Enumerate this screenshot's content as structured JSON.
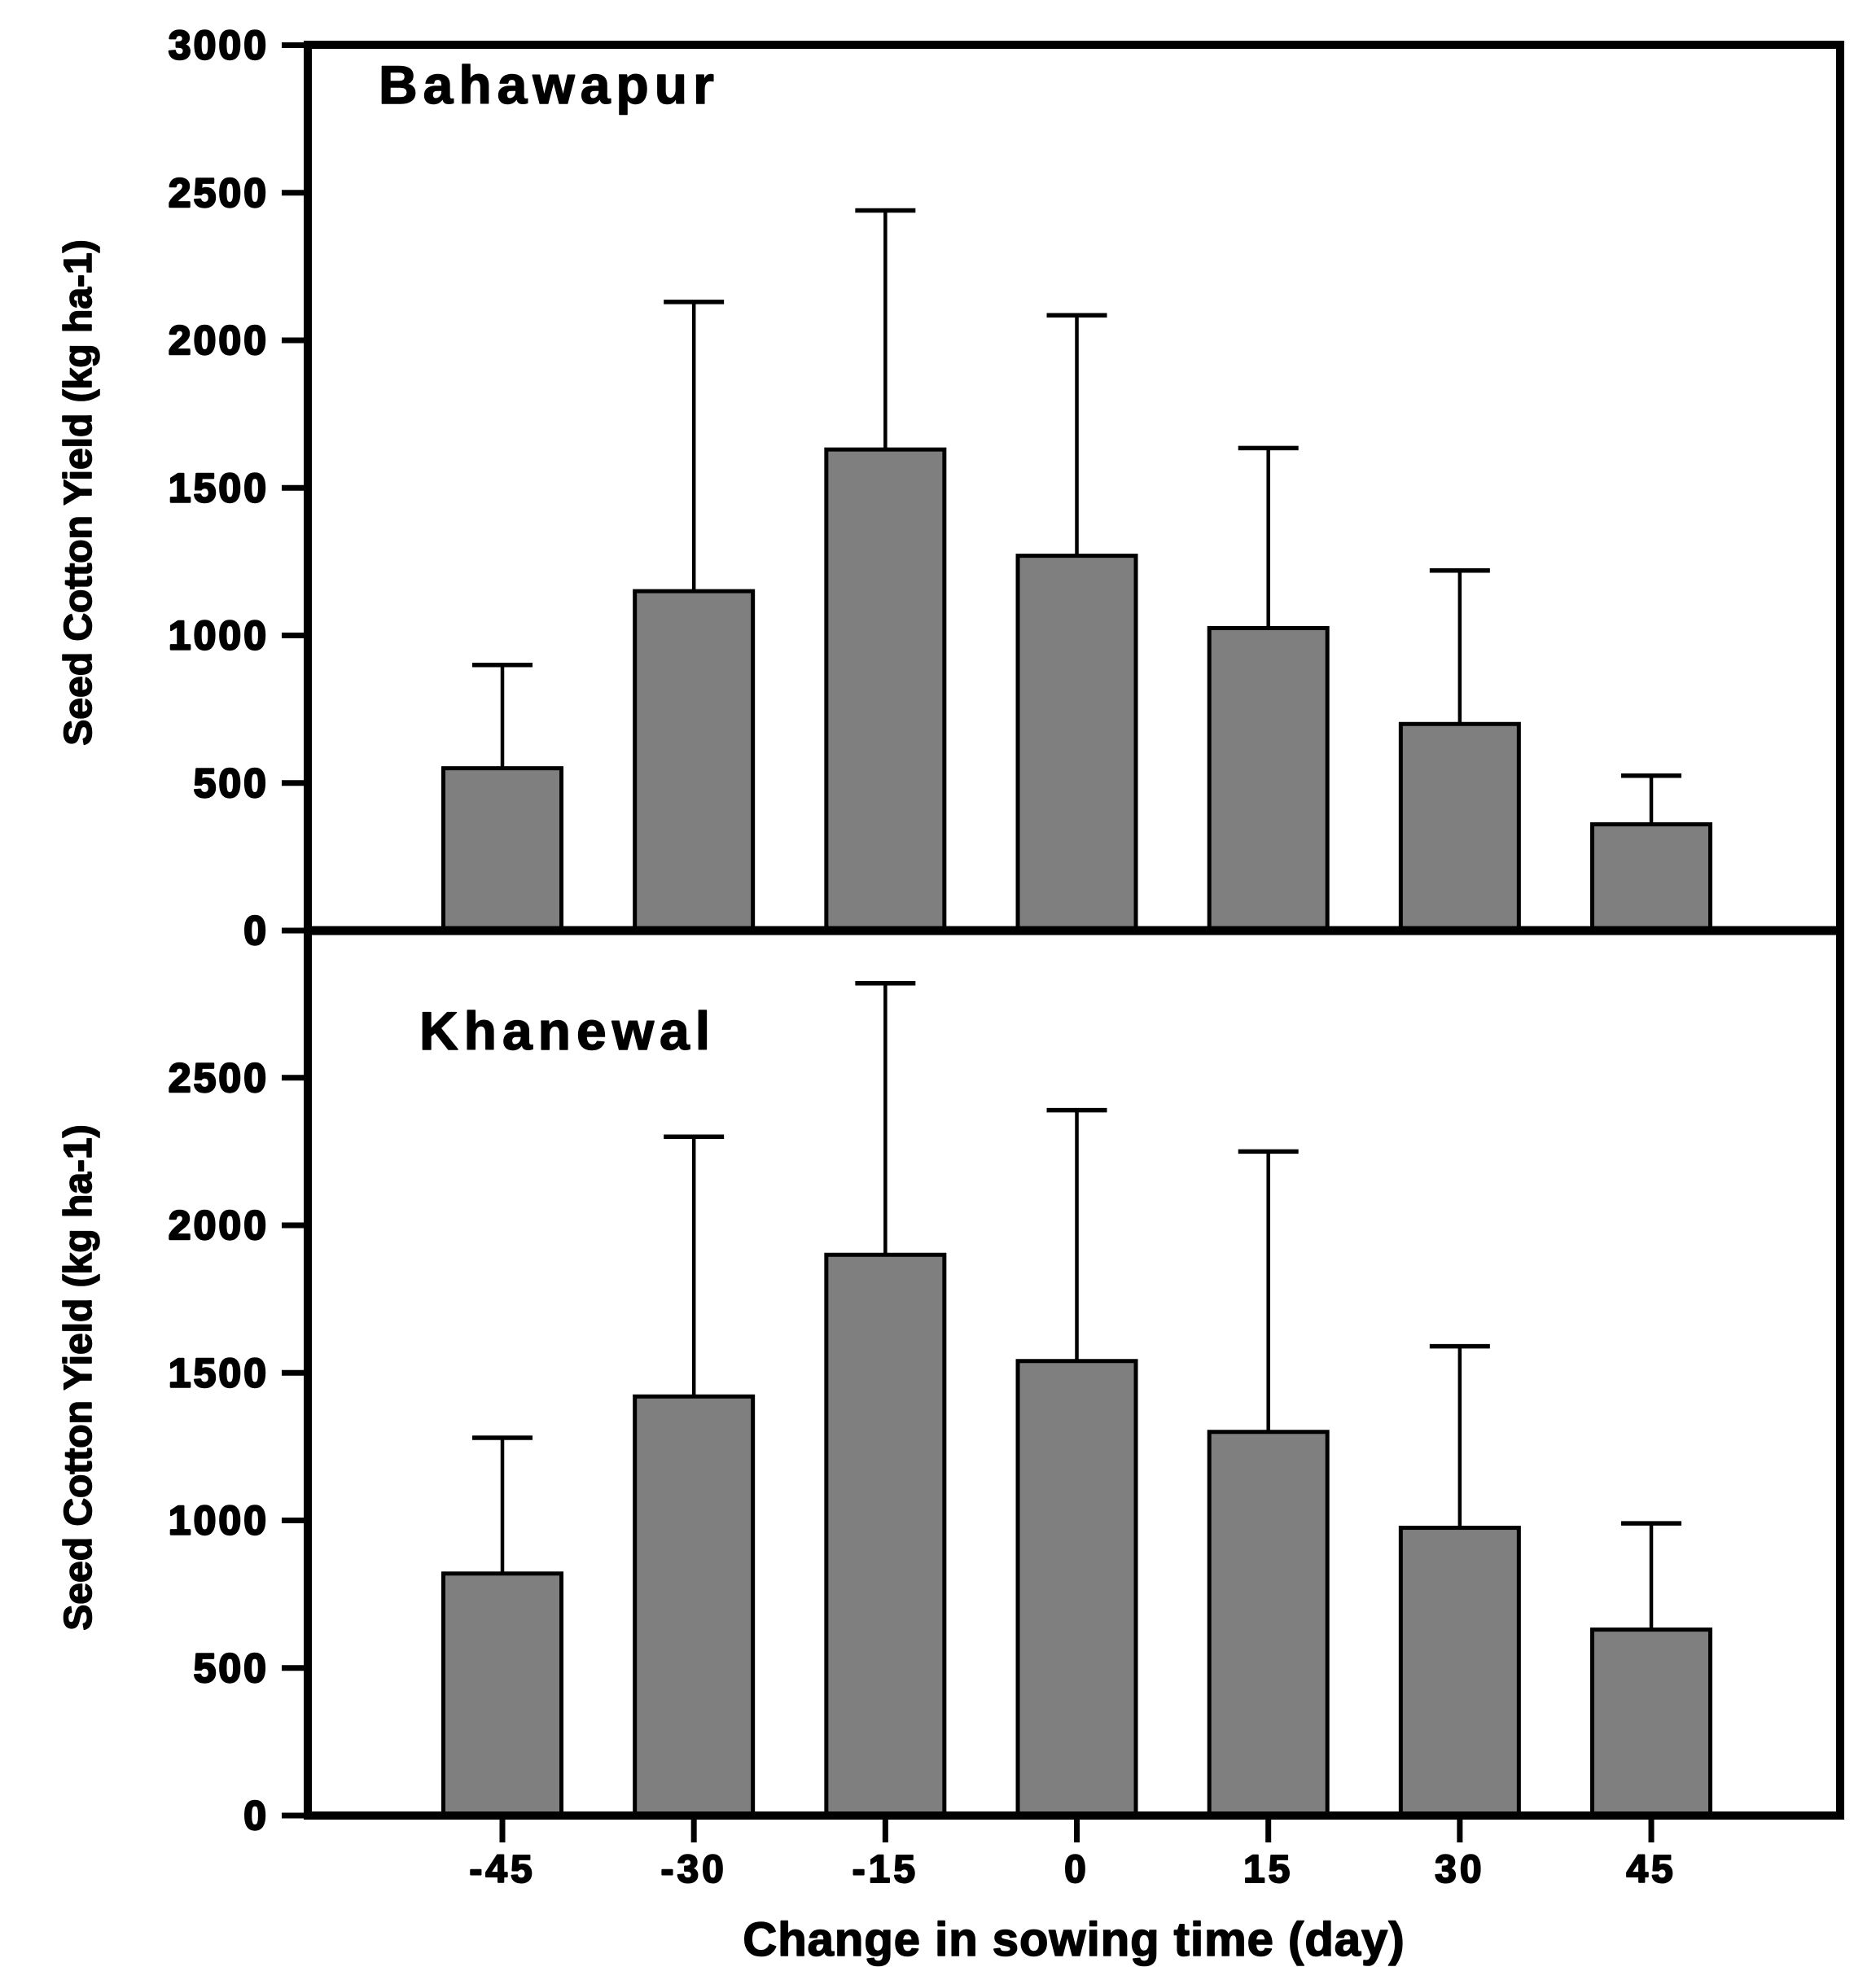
{
  "figure": {
    "background_color": "#ffffff",
    "bar_fill_color": "#7f7f7f",
    "bar_stroke_color": "#000000",
    "axis_color": "#000000"
  },
  "chart_data": {
    "type": "bar",
    "orientation": "vertical",
    "grid": false,
    "legend": "none",
    "categories": [
      "-45",
      "-30",
      "-15",
      "0",
      "15",
      "30",
      "45"
    ],
    "xlabel": "Change in sowing time (day)",
    "panels": [
      {
        "title": "Bahawapur",
        "ylabel": "Seed Cotton Yield (kg ha-1)",
        "ylim": [
          0,
          3000
        ],
        "yticks": [
          "0",
          "500",
          "1000",
          "1500",
          "2000",
          "2500",
          "3000"
        ],
        "values": [
          550,
          1150,
          1630,
          1270,
          1025,
          700,
          360
        ],
        "errors_plus": [
          350,
          980,
          810,
          815,
          610,
          520,
          165
        ]
      },
      {
        "title": "Khanewal",
        "ylabel": "Seed Cotton Yield (kg ha-1)",
        "ylim": [
          0,
          3000
        ],
        "yticks": [
          "0",
          "500",
          "1000",
          "1500",
          "2000",
          "2500"
        ],
        "values": [
          820,
          1420,
          1900,
          1540,
          1300,
          975,
          630
        ],
        "errors_plus": [
          460,
          880,
          920,
          850,
          950,
          615,
          360
        ]
      }
    ]
  }
}
